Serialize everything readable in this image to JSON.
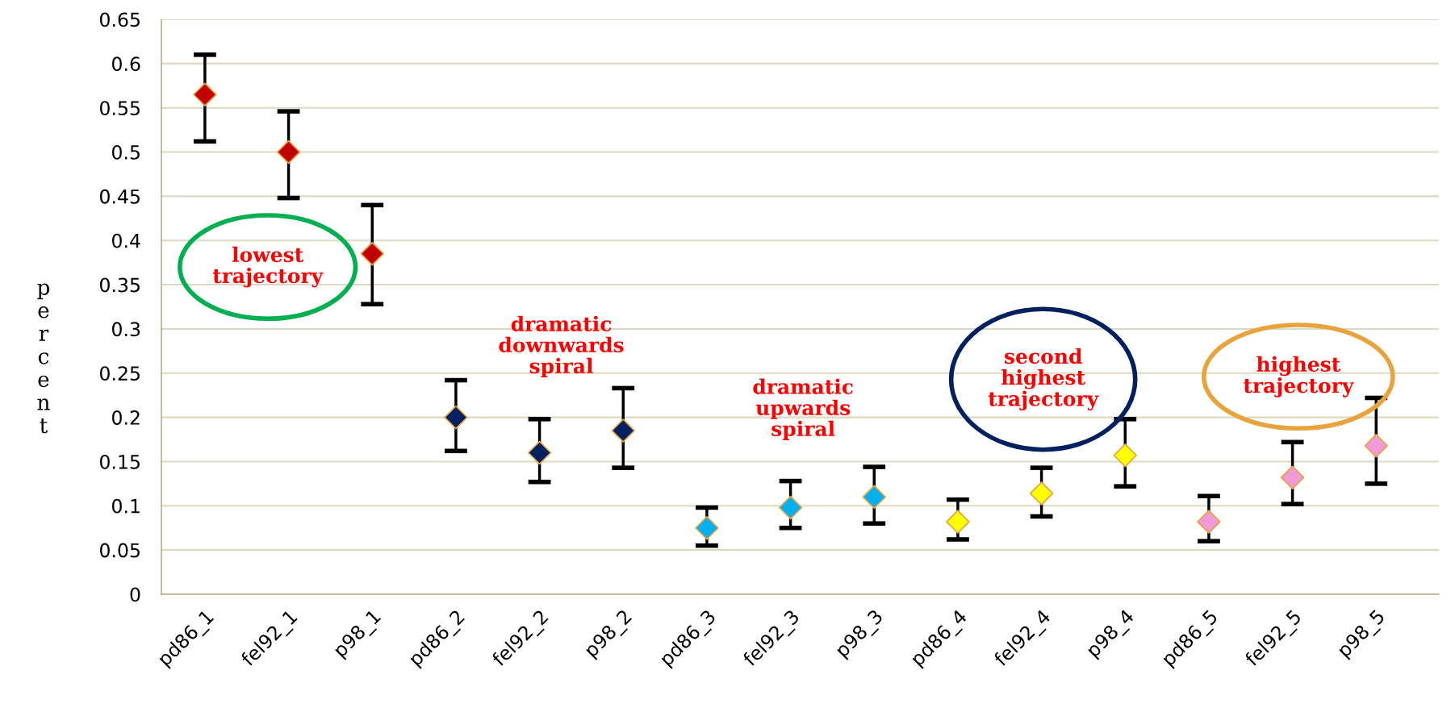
{
  "chart_data": {
    "type": "scatter",
    "ylabel": "percent",
    "categories": [
      "pd86_1",
      "fel92_1",
      "p98_1",
      "pd86_2",
      "fel92_2",
      "p98_2",
      "pd86_3",
      "fel92_3",
      "p98_3",
      "pd86_4",
      "fel92_4",
      "p98_4",
      "pd86_5",
      "fel92_5",
      "p98_5"
    ],
    "values": [
      0.565,
      0.5,
      0.385,
      0.2,
      0.16,
      0.185,
      0.075,
      0.098,
      0.11,
      0.082,
      0.114,
      0.157,
      0.082,
      0.132,
      0.168
    ],
    "errors": [
      [
        0.512,
        0.61
      ],
      [
        0.448,
        0.546
      ],
      [
        0.328,
        0.44
      ],
      [
        0.162,
        0.242
      ],
      [
        0.127,
        0.198
      ],
      [
        0.143,
        0.233
      ],
      [
        0.055,
        0.098
      ],
      [
        0.075,
        0.128
      ],
      [
        0.08,
        0.144
      ],
      [
        0.062,
        0.107
      ],
      [
        0.088,
        0.143
      ],
      [
        0.122,
        0.198
      ],
      [
        0.06,
        0.111
      ],
      [
        0.102,
        0.172
      ],
      [
        0.125,
        0.222
      ]
    ],
    "colors": [
      "#c00000",
      "#c00000",
      "#c00000",
      "#002060",
      "#002060",
      "#002060",
      "#00b0f0",
      "#00b0f0",
      "#00b0f0",
      "#ffff00",
      "#ffff00",
      "#ffff00",
      "#f09ad8",
      "#f09ad8",
      "#f09ad8"
    ],
    "marker": "diamond",
    "ylim": [
      0,
      0.65
    ],
    "yticks": [
      0,
      0.05,
      0.1,
      0.15,
      0.2,
      0.25,
      0.3,
      0.35,
      0.4,
      0.45,
      0.5,
      0.55,
      0.6,
      0.65
    ],
    "grid": "y",
    "annotations": [
      "lowest\ntrajectory",
      "dramatic\ndownwards\nspiral",
      "dramatic\nupwards\nspiral",
      "second\nhighest\ntrajectory",
      "highest\ntrajectory"
    ]
  }
}
